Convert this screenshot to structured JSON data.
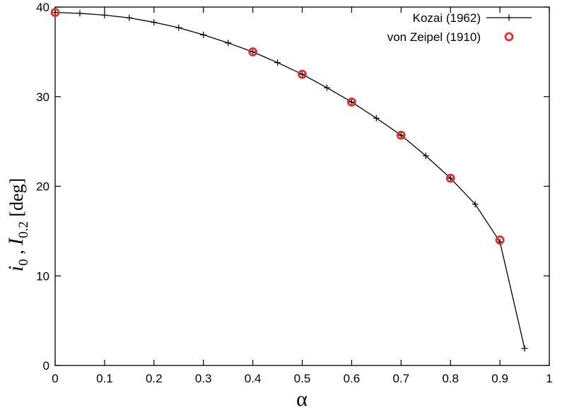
{
  "chart_data": {
    "type": "line",
    "title": "",
    "xlabel": "α",
    "ylabel": {
      "i_main": "i",
      "i_sub": "0",
      "sep": " , ",
      "I_main": "I",
      "I_sub": "0.2",
      "unit": " [deg]"
    },
    "xlim": [
      0,
      1
    ],
    "ylim": [
      0,
      40
    ],
    "xticks": [
      "0",
      "0.1",
      "0.2",
      "0.3",
      "0.4",
      "0.5",
      "0.6",
      "0.7",
      "0.8",
      "0.9",
      "1"
    ],
    "yticks": [
      "0",
      "10",
      "20",
      "30",
      "40"
    ],
    "grid": false,
    "legend_position": "top-right",
    "series": [
      {
        "name": "Kozai (1962)",
        "style": "line-with-plus-markers",
        "color": "#000000",
        "x": [
          0,
          0.05,
          0.1,
          0.15,
          0.2,
          0.25,
          0.3,
          0.35,
          0.4,
          0.45,
          0.5,
          0.55,
          0.6,
          0.65,
          0.7,
          0.75,
          0.8,
          0.85,
          0.9,
          0.95
        ],
        "y": [
          39.4,
          39.3,
          39.1,
          38.8,
          38.3,
          37.7,
          36.9,
          36.0,
          35.0,
          33.8,
          32.5,
          31.0,
          29.4,
          27.6,
          25.7,
          23.4,
          20.9,
          18.0,
          13.8,
          1.9
        ]
      },
      {
        "name": "von Zeipel (1910)",
        "style": "open-circles",
        "color": "#e03030",
        "x": [
          0,
          0.4,
          0.5,
          0.6,
          0.7,
          0.8,
          0.9
        ],
        "y": [
          39.4,
          35.0,
          32.5,
          29.4,
          25.7,
          20.9,
          14.0
        ]
      }
    ]
  }
}
